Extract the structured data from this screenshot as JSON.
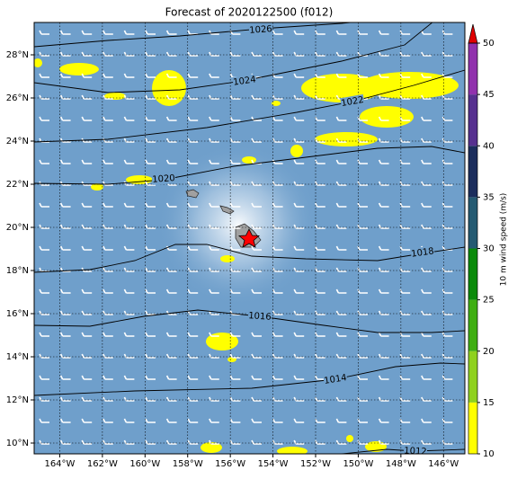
{
  "chart_data": {
    "type": "map",
    "title": "Forecast of 2020122500 (f012)",
    "xlim": [
      -165.2,
      -145
    ],
    "ylim": [
      9.5,
      29.5
    ],
    "xticks": [
      {
        "value": -164,
        "label": "164°W"
      },
      {
        "value": -162,
        "label": "162°W"
      },
      {
        "value": -160,
        "label": "160°W"
      },
      {
        "value": -158,
        "label": "158°W"
      },
      {
        "value": -156,
        "label": "156°W"
      },
      {
        "value": -154,
        "label": "154°W"
      },
      {
        "value": -152,
        "label": "152°W"
      },
      {
        "value": -150,
        "label": "150°W"
      },
      {
        "value": -148,
        "label": "148°W"
      },
      {
        "value": -146,
        "label": "146°W"
      }
    ],
    "yticks": [
      {
        "value": 10,
        "label": "10°N"
      },
      {
        "value": 12,
        "label": "12°N"
      },
      {
        "value": 14,
        "label": "14°N"
      },
      {
        "value": 16,
        "label": "16°N"
      },
      {
        "value": 18,
        "label": "18°N"
      },
      {
        "value": 20,
        "label": "20°N"
      },
      {
        "value": 22,
        "label": "22°N"
      },
      {
        "value": 24,
        "label": "24°N"
      },
      {
        "value": 26,
        "label": "26°N"
      },
      {
        "value": 28,
        "label": "28°N"
      }
    ],
    "grid": true,
    "contours": [
      1026,
      1024,
      1022,
      1020,
      1018,
      1016,
      1014,
      1012
    ],
    "colorbar": {
      "label": "10 m wind speed (m/s)",
      "lim": [
        10,
        50
      ],
      "ticks": [
        10,
        15,
        20,
        25,
        30,
        35,
        40,
        45,
        50
      ],
      "colors": [
        "#ffff00",
        "#8fd11f",
        "#3fae12",
        "#0a8a0a",
        "#245a72",
        "#1b2d5c",
        "#56308f",
        "#9131ad"
      ],
      "extend_color": "#e00000"
    }
  }
}
